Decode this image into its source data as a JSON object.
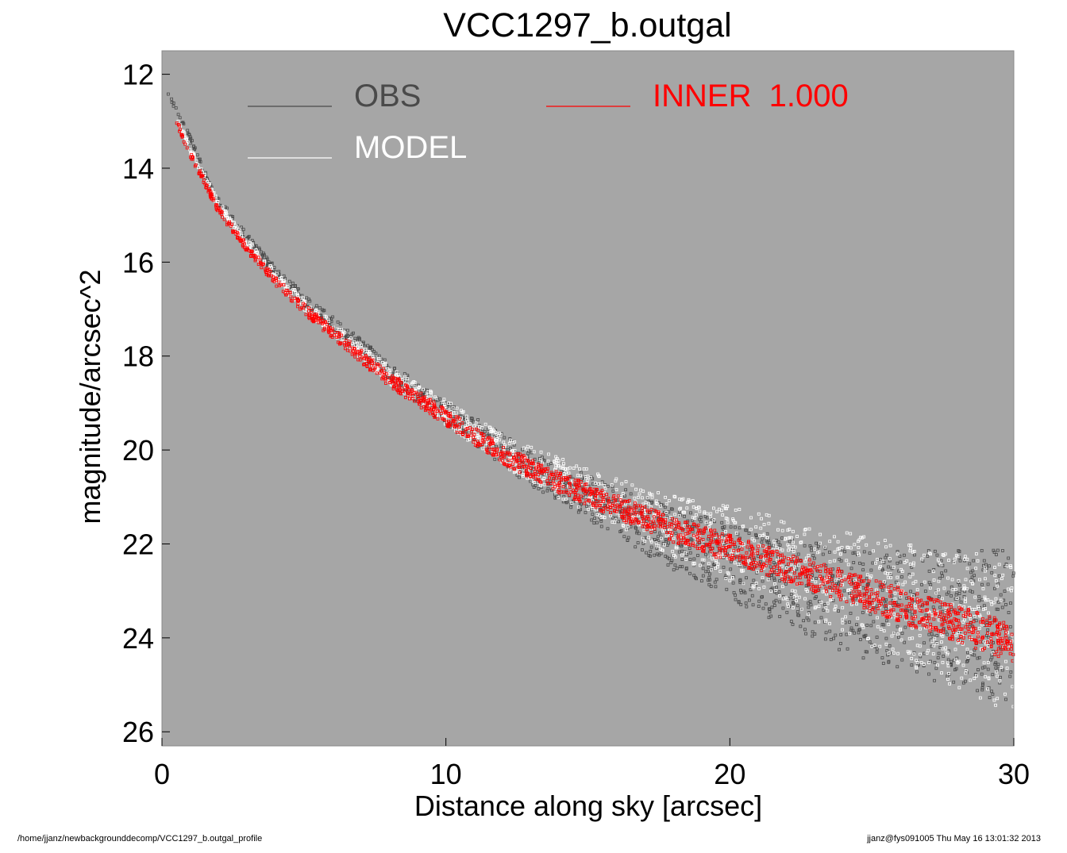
{
  "footer": {
    "left": "/home/jjanz/newbackgrounddecomp/VCC1297_b.outgal_profile",
    "right": "jjanz@fys091005  Thu May 16 13:01:32 2013"
  },
  "chart_data": {
    "type": "scatter",
    "title": "VCC1297_b.outgal",
    "xlabel": "Distance along sky [arcsec]",
    "ylabel": "magnitude/arcsec^2",
    "xlim": [
      0,
      30
    ],
    "ylim": [
      26.3,
      11.5
    ],
    "y_inverted": true,
    "xticks": [
      0,
      10,
      20,
      30
    ],
    "yticks": [
      12,
      14,
      16,
      18,
      20,
      22,
      24,
      26
    ],
    "grid": false,
    "plot_background": "#a6a6a6",
    "legend_placement": "top-left, inside plot",
    "series": [
      {
        "name": "OBS",
        "color": "#4a4a4a",
        "x": [
          0.2,
          0.5,
          0.7,
          1,
          1.5,
          2,
          3,
          4,
          5,
          6,
          7,
          8,
          9,
          10,
          11,
          12,
          13,
          14,
          15,
          16,
          17,
          18,
          19,
          20,
          21,
          22,
          23,
          24,
          25,
          26,
          27,
          28,
          29,
          30
        ],
        "y": [
          12.4,
          12.8,
          13.0,
          13.4,
          14.1,
          14.7,
          15.5,
          16.2,
          16.8,
          17.3,
          17.8,
          18.3,
          18.8,
          19.2,
          19.6,
          20.0,
          20.4,
          20.7,
          21.0,
          21.3,
          21.6,
          21.9,
          22.1,
          22.4,
          22.6,
          22.8,
          23.0,
          23.2,
          23.3,
          23.4,
          23.5,
          23.6,
          23.7,
          23.8
        ]
      },
      {
        "name": "MODEL",
        "color": "#ffffff",
        "x": [
          0.5,
          1,
          2,
          3,
          4,
          5,
          6,
          7,
          8,
          9,
          10,
          12,
          14,
          16,
          18,
          20,
          22,
          24,
          26,
          28,
          30
        ],
        "y": [
          12.9,
          13.6,
          14.8,
          15.6,
          16.3,
          16.9,
          17.4,
          17.9,
          18.4,
          18.8,
          19.2,
          20.0,
          20.6,
          21.1,
          21.6,
          22.0,
          22.4,
          22.8,
          23.2,
          23.6,
          24.0
        ]
      },
      {
        "name": "INNER  1.000",
        "color": "#ff0000",
        "x": [
          0.5,
          1,
          2,
          3,
          4,
          5,
          6,
          7,
          8,
          9,
          10,
          12,
          14,
          16,
          18,
          20,
          22,
          24,
          26,
          28,
          30
        ],
        "y": [
          13.0,
          13.7,
          14.9,
          15.7,
          16.4,
          17.0,
          17.5,
          18.0,
          18.5,
          18.9,
          19.3,
          20.1,
          20.7,
          21.2,
          21.7,
          22.1,
          22.5,
          22.9,
          23.3,
          23.7,
          24.1
        ]
      }
    ]
  }
}
